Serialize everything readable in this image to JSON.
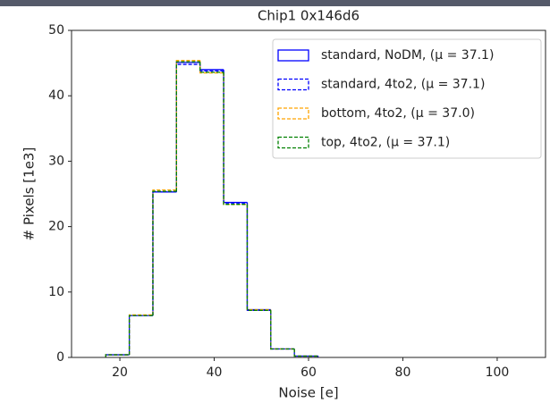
{
  "chart_data": {
    "type": "histogram",
    "title": "Chip1 0x146d6",
    "x_label": "Noise [e]",
    "y_label": "# Pixels [1e3]",
    "bins": [
      17,
      22,
      27,
      32,
      37,
      42,
      47,
      52,
      57,
      62
    ],
    "series": [
      {
        "name": "standard, NoDM, (μ = 37.1)",
        "color": "#0000ff",
        "linestyle": "solid",
        "values": [
          0.4,
          6.4,
          25.3,
          45.1,
          44.0,
          23.7,
          7.3,
          1.3,
          0.2
        ]
      },
      {
        "name": "standard, 4to2, (μ = 37.1)",
        "color": "#0000ff",
        "linestyle": "dashed",
        "values": [
          0.4,
          6.4,
          25.3,
          44.8,
          43.8,
          23.6,
          7.2,
          1.3,
          0.2
        ]
      },
      {
        "name": "bottom, 4to2, (μ = 37.0)",
        "color": "#ffa500",
        "linestyle": "dashed",
        "values": [
          0.4,
          6.5,
          25.6,
          45.4,
          43.5,
          23.4,
          7.3,
          1.3,
          0.2
        ]
      },
      {
        "name": "top, 4to2, (μ = 37.1)",
        "color": "#008000",
        "linestyle": "dashed",
        "values": [
          0.4,
          6.4,
          25.4,
          45.2,
          43.6,
          23.4,
          7.2,
          1.3,
          0.2
        ]
      }
    ],
    "xlim": [
      9.75,
      110.25
    ],
    "ylim": [
      0,
      50
    ],
    "xticks": [
      20,
      40,
      60,
      80,
      100
    ],
    "yticks": [
      0,
      10,
      20,
      30,
      40,
      50
    ],
    "grid": false,
    "legend": "upper right"
  }
}
